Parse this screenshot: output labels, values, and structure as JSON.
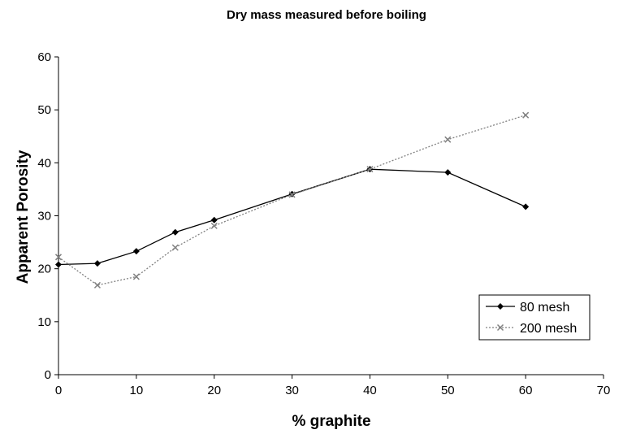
{
  "chart_data": {
    "type": "line",
    "title": "Dry mass measured before boiling",
    "xlabel": "% graphite",
    "ylabel": "Apparent Porosity",
    "xlim": [
      0,
      70
    ],
    "ylim": [
      0,
      60
    ],
    "xticks": [
      "0",
      "10",
      "20",
      "30",
      "40",
      "50",
      "60",
      "70"
    ],
    "yticks": [
      "0",
      "10",
      "20",
      "30",
      "40",
      "50",
      "60"
    ],
    "grid": false,
    "legend_position": "bottom-right",
    "series": [
      {
        "name": "80 mesh",
        "color": "#000000",
        "line_style": "solid",
        "marker": "diamond",
        "x": [
          0,
          5,
          10,
          15,
          20,
          30,
          40,
          50,
          60
        ],
        "y": [
          20.8,
          21.0,
          23.3,
          26.9,
          29.2,
          34.1,
          38.8,
          38.2,
          31.7
        ]
      },
      {
        "name": "200 mesh",
        "color": "#808080",
        "line_style": "dotted",
        "marker": "x",
        "x": [
          0,
          5,
          10,
          15,
          20,
          30,
          40,
          50,
          60
        ],
        "y": [
          22.2,
          16.9,
          18.5,
          24.0,
          28.1,
          34.0,
          38.8,
          44.4,
          49.0
        ]
      }
    ]
  }
}
